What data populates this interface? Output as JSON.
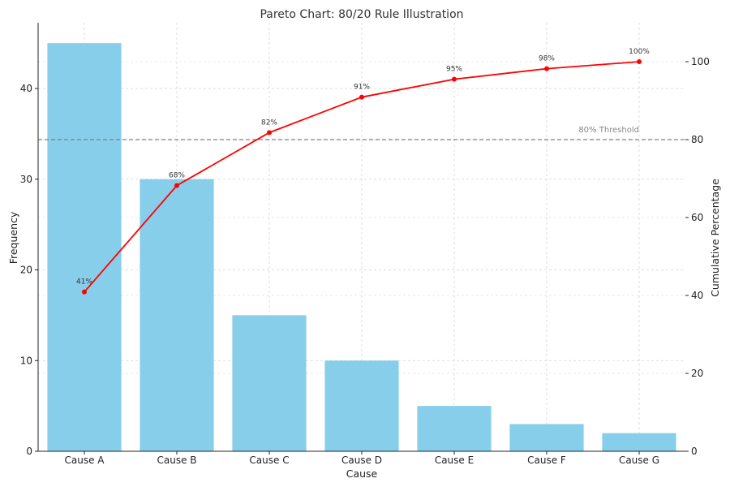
{
  "chart_data": {
    "type": "bar",
    "title": "Pareto Chart: 80/20 Rule Illustration",
    "xlabel": "Cause",
    "ylabel": "Frequency",
    "y2label": "Cumulative Percentage",
    "categories": [
      "Cause A",
      "Cause B",
      "Cause C",
      "Cause D",
      "Cause E",
      "Cause F",
      "Cause G"
    ],
    "series": [
      {
        "type": "bar",
        "axis": "left",
        "color": "#87CEEB",
        "values": [
          45,
          30,
          15,
          10,
          5,
          3,
          2
        ]
      },
      {
        "type": "line",
        "axis": "right",
        "color": "#ff0000",
        "values": [
          40.9,
          68.2,
          81.8,
          90.9,
          95.5,
          98.2,
          100
        ],
        "labels": [
          "41%",
          "68%",
          "82%",
          "91%",
          "95%",
          "98%",
          "100%"
        ]
      }
    ],
    "ylim": [
      0,
      47.25
    ],
    "y2lim": [
      0,
      110
    ],
    "yticks": [
      0,
      10,
      20,
      30,
      40
    ],
    "y2ticks": [
      0,
      20,
      40,
      60,
      80,
      100
    ],
    "threshold": {
      "value": 80,
      "label": "80% Threshold",
      "color": "#808080"
    },
    "grid": true
  }
}
